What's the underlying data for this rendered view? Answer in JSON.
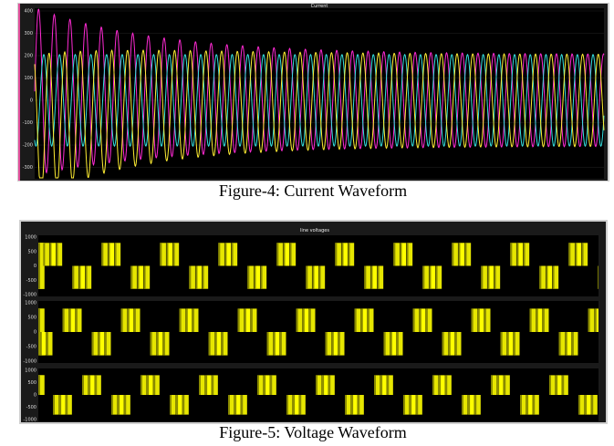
{
  "figure4": {
    "scope_title": "Current",
    "yticks": [
      "400",
      "300",
      "200",
      "100",
      "0",
      "-100",
      "-200",
      "-300"
    ],
    "caption": "Figure-4: Current Waveform"
  },
  "figure5": {
    "scope_title": "line voltages",
    "panels": [
      {
        "yticks": [
          "1000",
          "500",
          "0",
          "-500",
          "-1000"
        ]
      },
      {
        "yticks": [
          "1000",
          "500",
          "0",
          "-500",
          "-1000"
        ]
      },
      {
        "yticks": [
          "1000",
          "500",
          "0",
          "-500",
          "-1000"
        ]
      }
    ],
    "caption": "Figure-5: Voltage Waveform"
  }
}
